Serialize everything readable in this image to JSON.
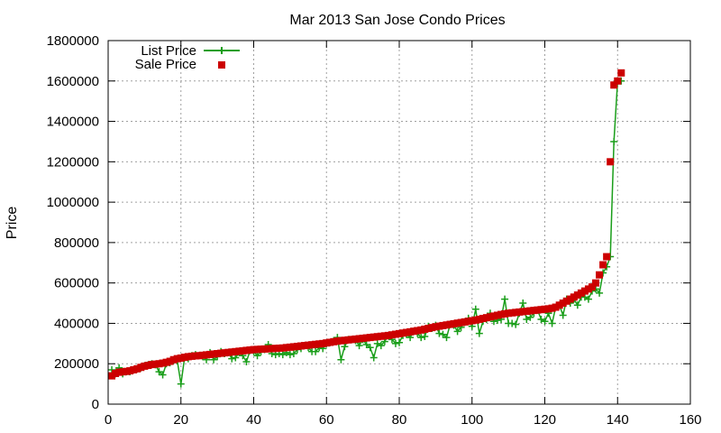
{
  "chart_data": {
    "type": "line",
    "title": "Mar 2013 San Jose Condo Prices",
    "xlabel": "",
    "ylabel": "Price",
    "xlim": [
      0,
      160
    ],
    "ylim": [
      0,
      1800000
    ],
    "x_ticks": [
      0,
      20,
      40,
      60,
      80,
      100,
      120,
      140,
      160
    ],
    "y_ticks": [
      0,
      200000,
      400000,
      600000,
      800000,
      1000000,
      1200000,
      1400000,
      1600000,
      1800000
    ],
    "grid": true,
    "legend_position": "top-left",
    "series": [
      {
        "name": "List Price",
        "style": "linespoints",
        "marker": "plus",
        "color": "#1a9e1a",
        "values": [
          170000,
          150000,
          180000,
          150000,
          160000,
          160000,
          170000,
          175000,
          180000,
          190000,
          195000,
          200000,
          195000,
          160000,
          145000,
          200000,
          205000,
          215000,
          215000,
          100000,
          230000,
          225000,
          240000,
          245000,
          240000,
          235000,
          220000,
          255000,
          220000,
          235000,
          260000,
          250000,
          255000,
          225000,
          230000,
          255000,
          240000,
          210000,
          265000,
          260000,
          240000,
          260000,
          270000,
          295000,
          250000,
          245000,
          250000,
          245000,
          255000,
          245000,
          250000,
          270000,
          275000,
          290000,
          280000,
          260000,
          260000,
          280000,
          275000,
          300000,
          305000,
          315000,
          330000,
          220000,
          285000,
          320000,
          320000,
          315000,
          290000,
          320000,
          295000,
          280000,
          230000,
          300000,
          290000,
          310000,
          340000,
          320000,
          300000,
          305000,
          340000,
          345000,
          330000,
          360000,
          350000,
          330000,
          335000,
          385000,
          375000,
          390000,
          350000,
          345000,
          330000,
          395000,
          390000,
          360000,
          380000,
          405000,
          425000,
          385000,
          470000,
          350000,
          410000,
          420000,
          450000,
          410000,
          415000,
          420000,
          520000,
          400000,
          400000,
          395000,
          450000,
          500000,
          420000,
          430000,
          450000,
          465000,
          420000,
          410000,
          450000,
          400000,
          480000,
          490000,
          440000,
          520000,
          500000,
          520000,
          490000,
          530000,
          530000,
          520000,
          560000,
          570000,
          550000,
          650000,
          680000,
          730000,
          1300000,
          1600000,
          1600000
        ]
      },
      {
        "name": "Sale Price",
        "style": "points",
        "marker": "square",
        "color": "#cc0000",
        "values": [
          140000,
          152000,
          158000,
          160000,
          162000,
          165000,
          170000,
          175000,
          182000,
          188000,
          192000,
          196000,
          198000,
          200000,
          203000,
          207000,
          212000,
          220000,
          225000,
          228000,
          232000,
          235000,
          237000,
          239000,
          240000,
          242000,
          244000,
          246000,
          248000,
          250000,
          252000,
          254000,
          256000,
          258000,
          260000,
          262000,
          264000,
          266000,
          268000,
          270000,
          271000,
          272000,
          273000,
          274000,
          275000,
          276000,
          277000,
          278000,
          280000,
          282000,
          284000,
          286000,
          288000,
          290000,
          292000,
          294000,
          296000,
          298000,
          300000,
          303000,
          306000,
          309000,
          312000,
          314000,
          316000,
          318000,
          320000,
          322000,
          324000,
          326000,
          328000,
          330000,
          332000,
          334000,
          336000,
          338000,
          340000,
          343000,
          346000,
          349000,
          352000,
          355000,
          358000,
          361000,
          364000,
          367000,
          371000,
          375000,
          379000,
          383000,
          386000,
          389000,
          392000,
          395000,
          398000,
          401000,
          404000,
          407000,
          410000,
          413000,
          416000,
          420000,
          424000,
          428000,
          432000,
          436000,
          440000,
          444000,
          447000,
          450000,
          452000,
          454000,
          456000,
          458000,
          460000,
          462000,
          464000,
          466000,
          468000,
          470000,
          472000,
          475000,
          480000,
          490000,
          500000,
          510000,
          520000,
          530000,
          540000,
          550000,
          560000,
          570000,
          580000,
          600000,
          640000,
          690000,
          730000,
          1200000,
          1580000,
          1600000,
          1640000
        ]
      }
    ]
  }
}
